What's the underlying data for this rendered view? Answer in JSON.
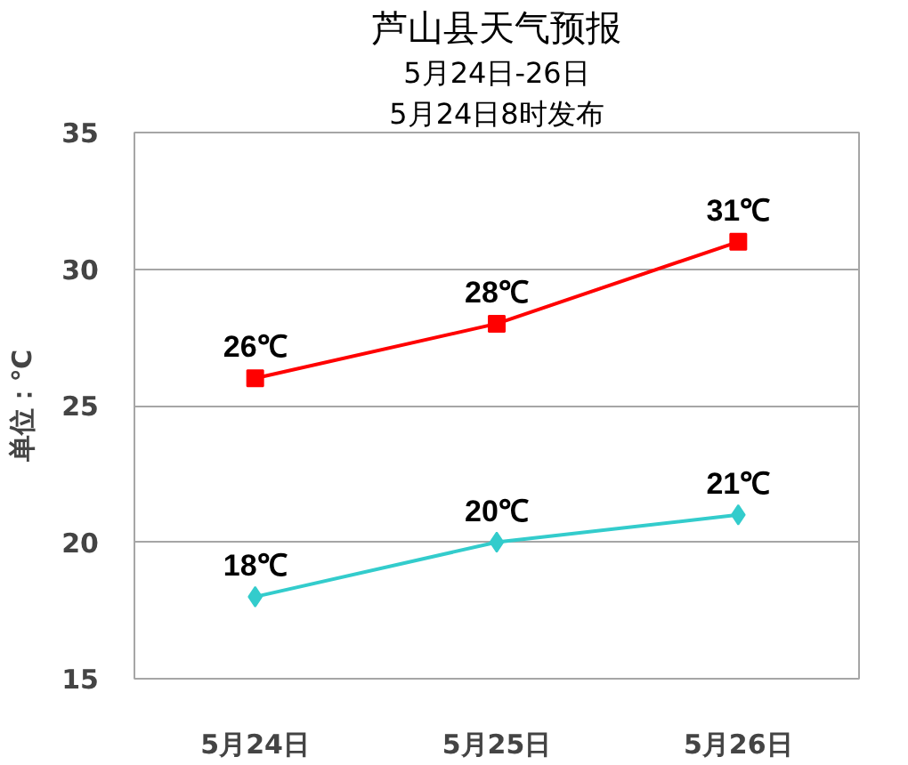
{
  "chart_data": {
    "type": "line",
    "title": "芦山县天气预报",
    "subtitle": "5月24日-26日",
    "annotations": [
      "5月24日8时发布"
    ],
    "ylabel": "单位：℃",
    "categories": [
      "5月24日",
      "5月25日",
      "5月26日"
    ],
    "series": [
      {
        "color": "#ff0000",
        "marker": "square",
        "values": [
          26,
          28,
          31
        ],
        "value_labels": [
          "26℃",
          "28℃",
          "31℃"
        ]
      },
      {
        "color": "#33cccc",
        "marker": "diamond",
        "values": [
          18,
          20,
          21
        ],
        "value_labels": [
          "18℃",
          "20℃",
          "21℃"
        ]
      }
    ],
    "ylim": [
      15,
      35
    ],
    "yticks": [
      15,
      20,
      25,
      30,
      35
    ],
    "grid": "y",
    "line_style": "solid"
  }
}
